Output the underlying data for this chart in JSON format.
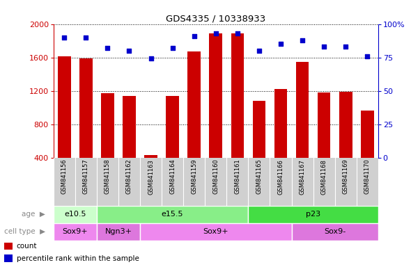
{
  "title": "GDS4335 / 10338933",
  "samples": [
    "GSM841156",
    "GSM841157",
    "GSM841158",
    "GSM841162",
    "GSM841163",
    "GSM841164",
    "GSM841159",
    "GSM841160",
    "GSM841161",
    "GSM841165",
    "GSM841166",
    "GSM841167",
    "GSM841168",
    "GSM841169",
    "GSM841170"
  ],
  "counts": [
    1610,
    1590,
    1170,
    1140,
    430,
    1140,
    1670,
    1890,
    1890,
    1080,
    1220,
    1550,
    1180,
    1190,
    960
  ],
  "percentiles": [
    90,
    90,
    82,
    80,
    74,
    82,
    91,
    93,
    93,
    80,
    85,
    88,
    83,
    83,
    76
  ],
  "bar_color": "#cc0000",
  "dot_color": "#0000cc",
  "ylim_left": [
    400,
    2000
  ],
  "ylim_right": [
    0,
    100
  ],
  "yticks_left": [
    400,
    800,
    1200,
    1600,
    2000
  ],
  "yticks_right": [
    0,
    25,
    50,
    75,
    100
  ],
  "age_groups": [
    {
      "label": "e10.5",
      "start": 0,
      "end": 2,
      "color": "#ccffcc"
    },
    {
      "label": "e15.5",
      "start": 2,
      "end": 9,
      "color": "#88ee88"
    },
    {
      "label": "p23",
      "start": 9,
      "end": 15,
      "color": "#44dd44"
    }
  ],
  "cell_groups": [
    {
      "label": "Sox9+",
      "start": 0,
      "end": 2,
      "color": "#ee88ee"
    },
    {
      "label": "Ngn3+",
      "start": 2,
      "end": 4,
      "color": "#dd77dd"
    },
    {
      "label": "Sox9+",
      "start": 4,
      "end": 11,
      "color": "#ee88ee"
    },
    {
      "label": "Sox9-",
      "start": 11,
      "end": 15,
      "color": "#dd77dd"
    }
  ],
  "xlabels_bg": "#d0d0d0",
  "left_axis_color": "#cc0000",
  "right_axis_color": "#0000cc",
  "plot_bg": "#ffffff",
  "fig_bg": "#ffffff",
  "left_margin_labels": [
    "age",
    "cell type"
  ],
  "legend_items": [
    {
      "label": "count",
      "color": "#cc0000"
    },
    {
      "label": "percentile rank within the sample",
      "color": "#0000cc"
    }
  ]
}
